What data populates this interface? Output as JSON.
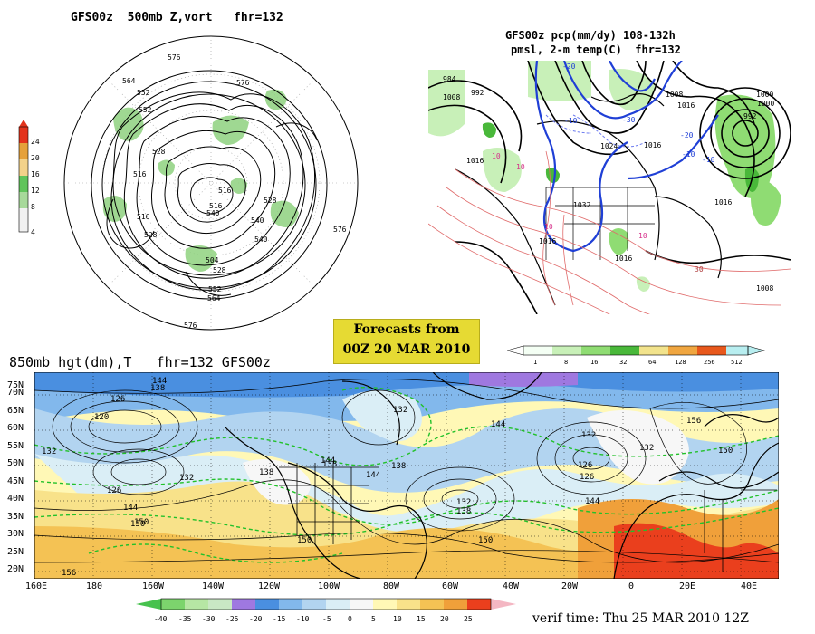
{
  "panels": {
    "polar": {
      "title": "GFS00z  500mb Z,vort   fhr=132",
      "contour_labels": [
        "576",
        "564",
        "552",
        "552",
        "528",
        "516",
        "540",
        "516",
        "528",
        "540",
        "504",
        "528",
        "552",
        "564",
        "576",
        "576",
        "576",
        "516",
        "528",
        "516",
        "540"
      ],
      "colorbar": {
        "colors": [
          "#f1f1f1",
          "#a7d99a",
          "#60c45b",
          "#f3d28a",
          "#e5a13a",
          "#e3331c"
        ],
        "ticks": [
          "4",
          "8",
          "12",
          "16",
          "20",
          "24"
        ]
      }
    },
    "precip": {
      "title_line1": "GFS00z pcp(mm/dy) 108-132h",
      "title_line2": "pmsl, 2-m temp(C)  fhr=132",
      "isobar_labels": [
        "984",
        "992",
        "1008",
        "1016",
        "1024",
        "1032",
        "1016",
        "1008",
        "1000",
        "992",
        "1016",
        "1016",
        "1016",
        "1016",
        "1008",
        "1000"
      ],
      "temp_labels": [
        "-20",
        "-10",
        "-30",
        "-10",
        "-20",
        "10",
        "10",
        "10",
        "30",
        "-10",
        "10"
      ],
      "colorbar": {
        "colors": [
          "#f4fff4",
          "#c8f0b8",
          "#8fdc73",
          "#49b83a",
          "#f2e38c",
          "#f0a640",
          "#e8581c",
          "#b8eef0"
        ],
        "ticks": [
          "1",
          "8",
          "16",
          "32",
          "64",
          "128",
          "256",
          "512"
        ]
      }
    },
    "forecast_box": {
      "line1": "Forecasts from",
      "line2": "00Z 20 MAR 2010"
    },
    "hgt850": {
      "title": "850mb hgt(dm),T   fhr=132 GFS00z",
      "lat_labels": [
        "75N",
        "70N",
        "65N",
        "60N",
        "55N",
        "50N",
        "45N",
        "40N",
        "35N",
        "30N",
        "25N",
        "20N"
      ],
      "lon_labels": [
        "160E",
        "180",
        "160W",
        "140W",
        "120W",
        "100W",
        "80W",
        "60W",
        "40W",
        "20W",
        "0",
        "20E",
        "40E"
      ],
      "height_labels": [
        "144",
        "138",
        "126",
        "120",
        "132",
        "132",
        "138",
        "144",
        "150",
        "132",
        "126",
        "132",
        "138",
        "144",
        "150",
        "150",
        "126",
        "144",
        "150",
        "156",
        "132",
        "138",
        "144",
        "150",
        "138",
        "132",
        "126",
        "144",
        "156"
      ],
      "temp_colorbar": {
        "colors": [
          "#47c24e",
          "#7cd46d",
          "#b6e6a4",
          "#c9e8c4",
          "#9f78e0",
          "#4a8fe0",
          "#82b8ec",
          "#b2d4f0",
          "#daeef6",
          "#f7f7f7",
          "#fff8b6",
          "#f8e28a",
          "#f4c254",
          "#f0a03a",
          "#ea3f1d",
          "#f4b7c3"
        ],
        "ticks": [
          "-40",
          "-35",
          "-30",
          "-25",
          "-20",
          "-15",
          "-10",
          "-5",
          "0",
          "5",
          "10",
          "15",
          "20",
          "25"
        ]
      }
    },
    "verif": "verif time: Thu 25 MAR 2010 12Z"
  }
}
